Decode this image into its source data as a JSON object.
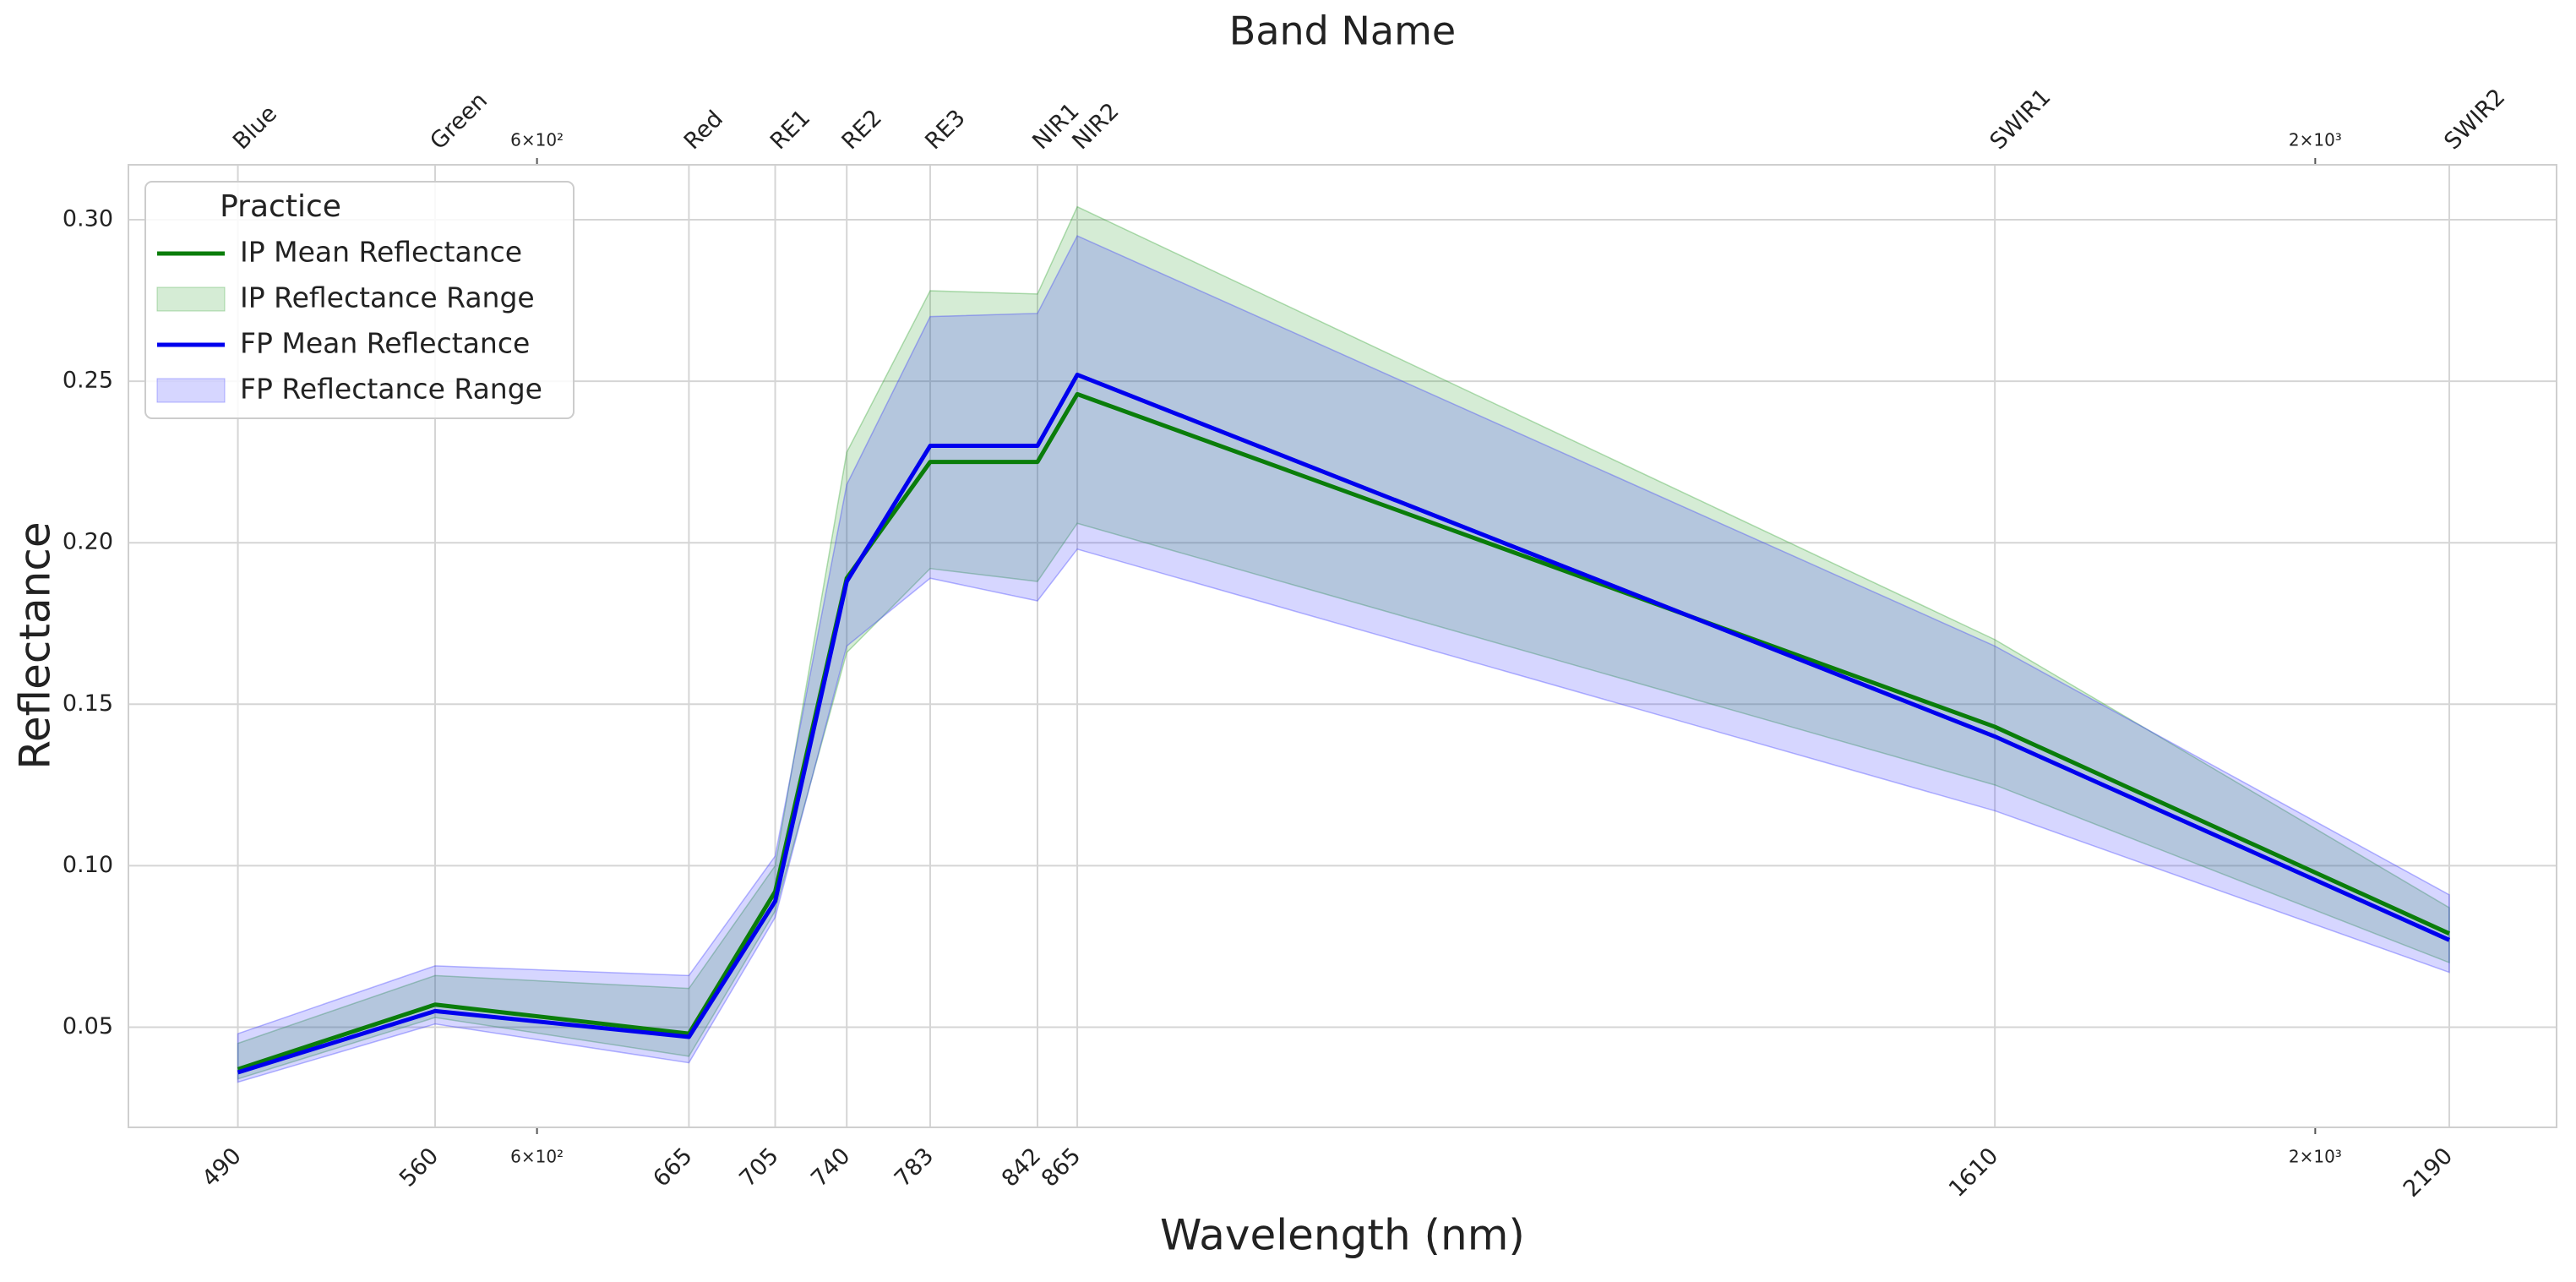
{
  "chart_data": {
    "type": "line",
    "x_label": "Wavelength (nm)",
    "y_label": "Reflectance",
    "x2_label": "Band Name",
    "log_x": true,
    "grid": true,
    "x": [
      490,
      560,
      665,
      705,
      740,
      783,
      842,
      865,
      1610,
      2190
    ],
    "band_names": [
      "Blue",
      "Green",
      "Red",
      "RE1",
      "RE2",
      "RE3",
      "NIR1",
      "NIR2",
      "SWIR1",
      "SWIR2"
    ],
    "xlim": [
      455,
      2355
    ],
    "xticks": [
      490,
      560,
      {
        "value": 600,
        "label": "6×10²"
      },
      665,
      705,
      740,
      783,
      842,
      865,
      1610,
      {
        "value": 2000,
        "label": "2×10³"
      },
      2190
    ],
    "ylim": [
      0.019,
      0.317
    ],
    "yticks": [
      {
        "value": 0.05,
        "label": "0.05"
      },
      {
        "value": 0.1,
        "label": "0.10"
      },
      {
        "value": 0.15,
        "label": "0.15"
      },
      {
        "value": 0.2,
        "label": "0.20"
      },
      {
        "value": 0.25,
        "label": "0.25"
      },
      {
        "value": 0.3,
        "label": "0.30"
      }
    ],
    "legend_title": "Practice",
    "legend_position": "upper left",
    "series": [
      {
        "name": "IP Mean Reflectance",
        "kind": "line",
        "color": "#0a7d0a",
        "values": [
          0.037,
          0.057,
          0.048,
          0.092,
          0.189,
          0.225,
          0.225,
          0.246,
          0.143,
          0.079
        ]
      },
      {
        "name": "IP Reflectance Range",
        "kind": "band",
        "color": "#2ca02c",
        "lower": [
          0.034,
          0.053,
          0.041,
          0.086,
          0.166,
          0.192,
          0.188,
          0.206,
          0.125,
          0.07
        ],
        "upper": [
          0.045,
          0.066,
          0.062,
          0.1,
          0.228,
          0.278,
          0.277,
          0.304,
          0.17,
          0.087
        ]
      },
      {
        "name": "FP Mean Reflectance",
        "kind": "line",
        "color": "#0000ee",
        "values": [
          0.036,
          0.055,
          0.047,
          0.089,
          0.188,
          0.23,
          0.23,
          0.252,
          0.14,
          0.077
        ]
      },
      {
        "name": "FP Reflectance Range",
        "kind": "band",
        "color": "#3333ff",
        "lower": [
          0.033,
          0.051,
          0.039,
          0.084,
          0.168,
          0.189,
          0.182,
          0.198,
          0.117,
          0.067
        ],
        "upper": [
          0.048,
          0.069,
          0.066,
          0.103,
          0.218,
          0.27,
          0.271,
          0.295,
          0.168,
          0.091
        ]
      }
    ]
  }
}
